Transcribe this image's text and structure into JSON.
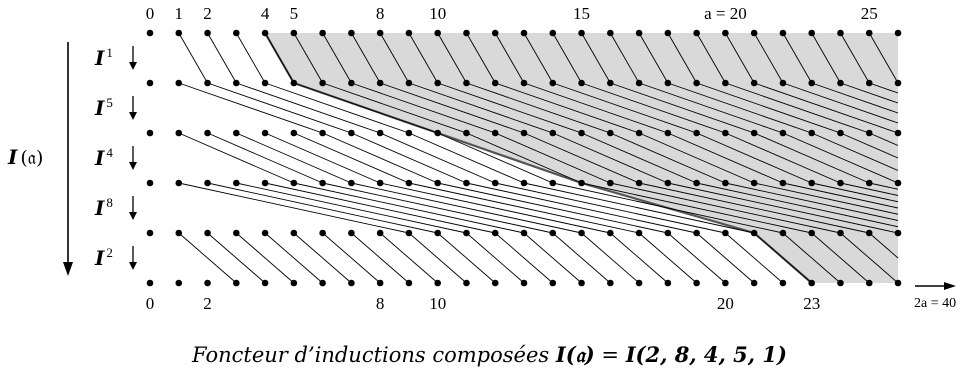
{
  "top_ticks": [
    {
      "text": "0",
      "i": 0
    },
    {
      "text": "1",
      "i": 1
    },
    {
      "text": "2",
      "i": 2
    },
    {
      "text": "4",
      "i": 4
    },
    {
      "text": "5",
      "i": 5
    },
    {
      "text": "8",
      "i": 8
    },
    {
      "text": "10",
      "i": 10
    },
    {
      "text": "15",
      "i": 15
    },
    {
      "text": "a = 20",
      "i": 20
    },
    {
      "text": "25",
      "i": 25
    }
  ],
  "bottom_ticks": [
    {
      "text": "0",
      "i": 0
    },
    {
      "text": "2",
      "i": 2
    },
    {
      "text": "8",
      "i": 8
    },
    {
      "text": "10",
      "i": 10
    },
    {
      "text": "20",
      "i": 20
    },
    {
      "text": "23",
      "i": 23
    }
  ],
  "axis_label": "2a = 40",
  "outer_operator": {
    "symbol": "I",
    "argument": "𝔞"
  },
  "row_operators": [
    {
      "symbol": "I",
      "sup": "1"
    },
    {
      "symbol": "I",
      "sup": "5"
    },
    {
      "symbol": "I",
      "sup": "4"
    },
    {
      "symbol": "I",
      "sup": "8"
    },
    {
      "symbol": "I",
      "sup": "2"
    }
  ],
  "induction_parameters": [
    1,
    5,
    4,
    8,
    2
  ],
  "shaded_boundary_points": [
    5,
    10,
    15,
    23
  ],
  "caption": {
    "text": "Foncteur d’inductions composées",
    "formula_lhs": "I(𝔞)",
    "formula_eq": "=",
    "formula_rhs": "I(2, 8, 4, 5, 1)"
  },
  "colors": {
    "shade": "#d9d9d9",
    "ink": "#000000",
    "boundary": "#555555"
  }
}
